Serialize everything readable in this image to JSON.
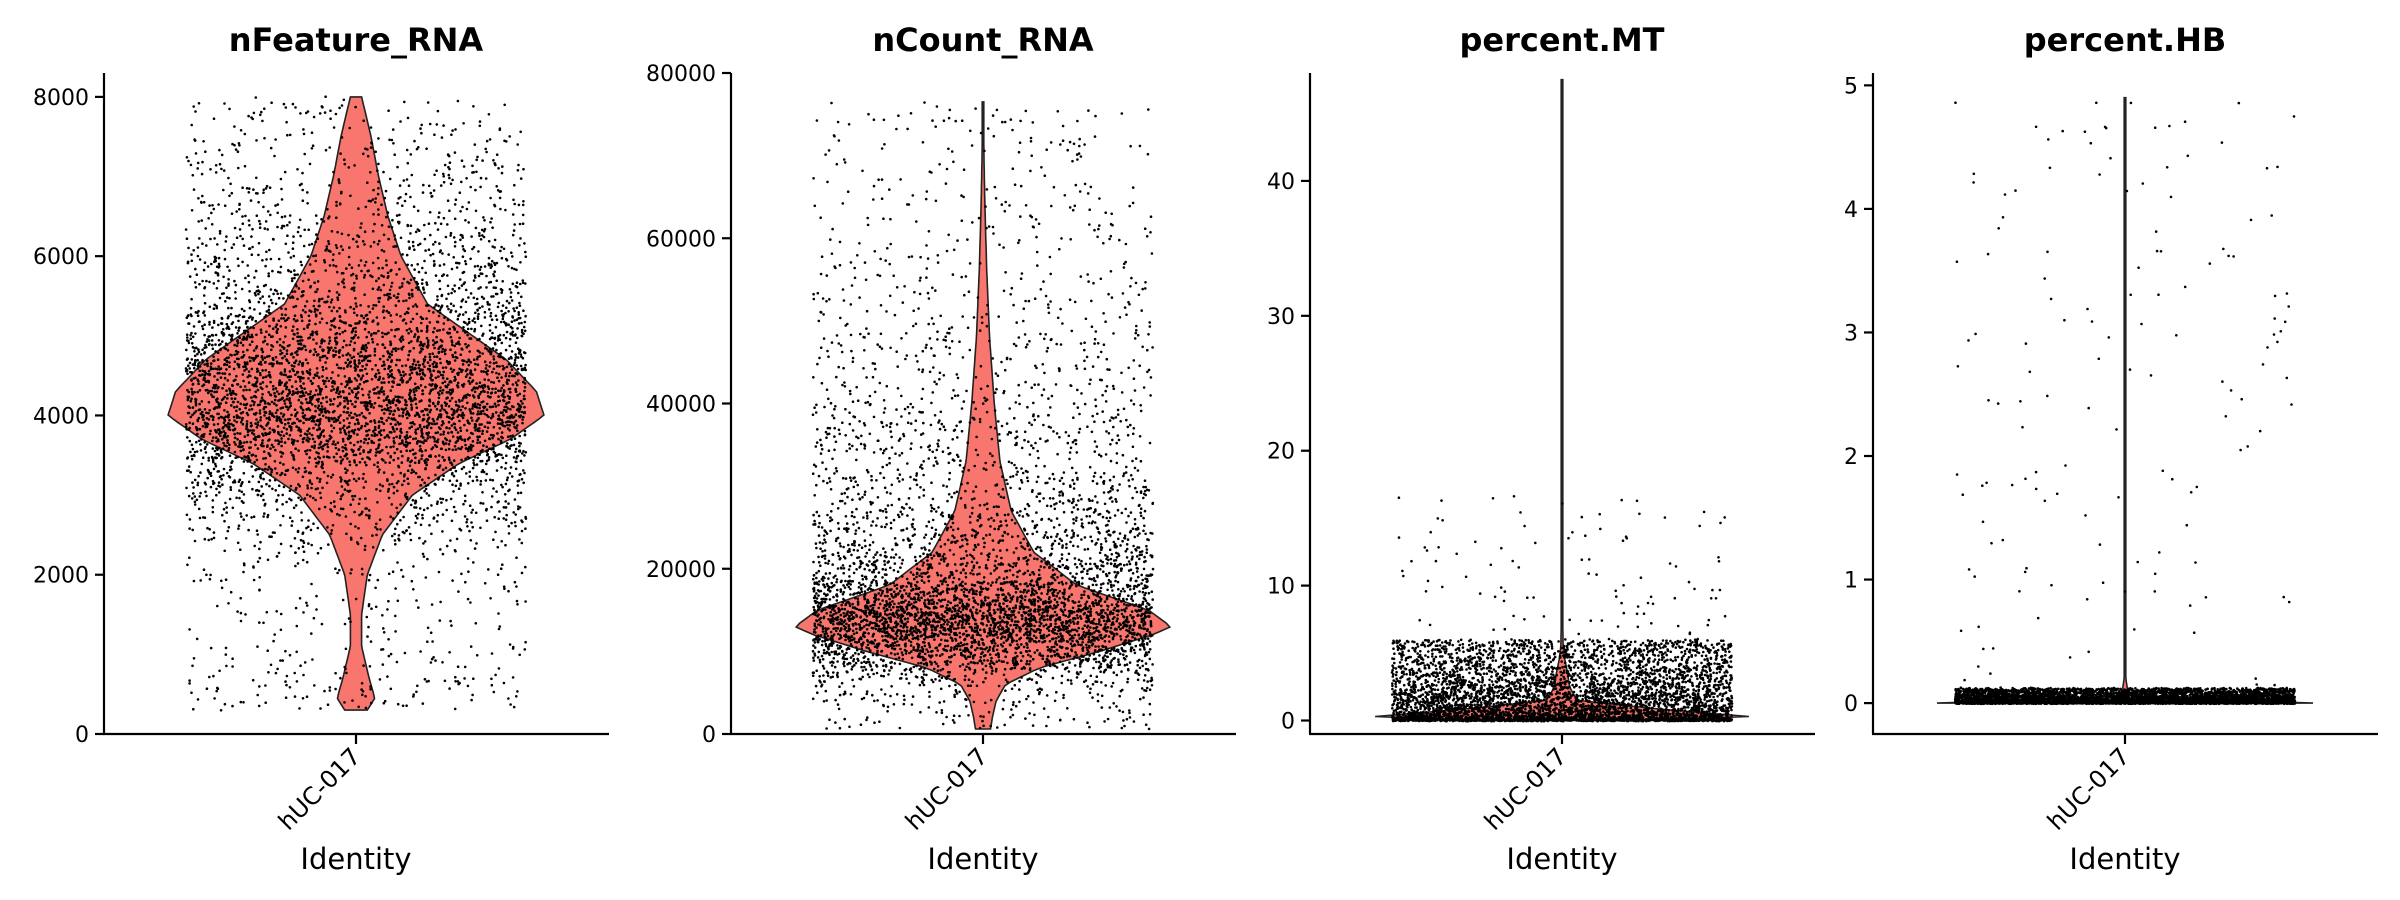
{
  "chart_data": [
    {
      "type": "violin",
      "title": "nFeature_RNA",
      "xlabel": "Identity",
      "ylabel": "",
      "category": "hUC-017",
      "fill_color": "#F8766D",
      "ylim": [
        0,
        8300
      ],
      "yticks": [
        0,
        2000,
        4000,
        6000,
        8000
      ],
      "ytick_labels": [
        "0",
        "2000",
        "4000",
        "6000",
        "8000"
      ],
      "y_min": 300,
      "y_max": 8000,
      "density": [
        [
          300,
          0.06
        ],
        [
          450,
          0.1
        ],
        [
          700,
          0.07
        ],
        [
          1100,
          0.03
        ],
        [
          1500,
          0.03
        ],
        [
          2000,
          0.06
        ],
        [
          2500,
          0.14
        ],
        [
          3000,
          0.3
        ],
        [
          3400,
          0.55
        ],
        [
          3700,
          0.82
        ],
        [
          4000,
          1.0
        ],
        [
          4300,
          0.96
        ],
        [
          4700,
          0.8
        ],
        [
          5000,
          0.62
        ],
        [
          5400,
          0.38
        ],
        [
          6000,
          0.24
        ],
        [
          6500,
          0.17
        ],
        [
          7000,
          0.12
        ],
        [
          7500,
          0.08
        ],
        [
          8000,
          0.03
        ]
      ]
    },
    {
      "type": "violin",
      "title": "nCount_RNA",
      "xlabel": "Identity",
      "ylabel": "",
      "category": "hUC-017",
      "fill_color": "#F8766D",
      "ylim": [
        0,
        80000
      ],
      "yticks": [
        0,
        20000,
        40000,
        60000,
        80000
      ],
      "ytick_labels": [
        "0",
        "20000",
        "40000",
        "60000",
        "80000"
      ],
      "y_min": 600,
      "y_max": 76500,
      "density": [
        [
          600,
          0.04
        ],
        [
          2000,
          0.05
        ],
        [
          4000,
          0.07
        ],
        [
          6000,
          0.12
        ],
        [
          8000,
          0.3
        ],
        [
          10000,
          0.62
        ],
        [
          12000,
          0.9
        ],
        [
          13000,
          1.0
        ],
        [
          15000,
          0.88
        ],
        [
          18000,
          0.5
        ],
        [
          22000,
          0.27
        ],
        [
          27000,
          0.15
        ],
        [
          33000,
          0.09
        ],
        [
          40000,
          0.06
        ],
        [
          48000,
          0.035
        ],
        [
          56000,
          0.02
        ],
        [
          64000,
          0.01
        ],
        [
          70000,
          0.005
        ],
        [
          76500,
          0.002
        ]
      ]
    },
    {
      "type": "violin",
      "title": "percent.MT",
      "xlabel": "Identity",
      "ylabel": "",
      "category": "hUC-017",
      "fill_color": "#F8766D",
      "ylim": [
        -1,
        48
      ],
      "yticks": [
        0,
        10,
        20,
        30,
        40
      ],
      "ytick_labels": [
        "0",
        "10",
        "20",
        "30",
        "40"
      ],
      "y_min": 0,
      "y_max": 47.5,
      "density": [
        [
          0,
          0.45
        ],
        [
          0.3,
          1.0
        ],
        [
          0.8,
          0.55
        ],
        [
          1.5,
          0.08
        ],
        [
          2.5,
          0.04
        ],
        [
          3.5,
          0.03
        ],
        [
          4.5,
          0.015
        ],
        [
          5.5,
          0.006
        ],
        [
          8,
          0.003
        ],
        [
          15,
          0.002
        ],
        [
          30,
          0.0015
        ],
        [
          47.5,
          0.001
        ]
      ]
    },
    {
      "type": "violin",
      "title": "percent.HB",
      "xlabel": "Identity",
      "ylabel": "",
      "category": "hUC-017",
      "fill_color": "#F8766D",
      "ylim": [
        -0.25,
        5.1
      ],
      "yticks": [
        0,
        1,
        2,
        3,
        4,
        5
      ],
      "ytick_labels": [
        "0",
        "1",
        "2",
        "3",
        "4",
        "5"
      ],
      "y_min": 0,
      "y_max": 4.9,
      "density": [
        [
          0,
          1.0
        ],
        [
          0.05,
          0.02
        ],
        [
          0.2,
          0.004
        ],
        [
          1,
          0.003
        ],
        [
          3,
          0.002
        ],
        [
          4.9,
          0.001
        ]
      ]
    }
  ]
}
